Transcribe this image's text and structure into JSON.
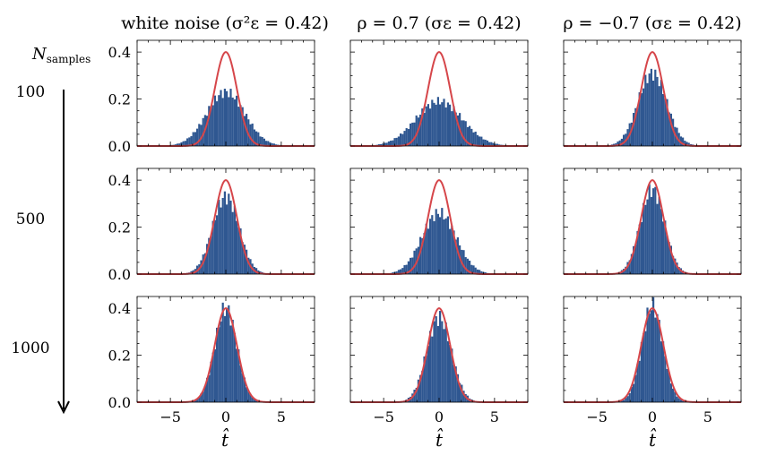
{
  "colors": {
    "histogram": "#2f5791",
    "density_curve": "#d6464a",
    "axis": "#000000"
  },
  "labels": {
    "y_header_main": "N",
    "y_header_sub": "samples",
    "x_label": "t̂"
  },
  "column_titles": [
    "white noise (σ²ε = 0.42)",
    "ρ = 0.7 (σε = 0.42)",
    "ρ = −0.7 (σε = 0.42)"
  ],
  "row_labels": [
    "100",
    "500",
    "1000"
  ],
  "chart_data": [
    {
      "type": "histogram",
      "title": "white noise (σ²ε = 0.42)",
      "xlabel": "t̂",
      "xlim": [
        -8,
        8
      ],
      "ylim": [
        0,
        0.45
      ],
      "x_ticks": [
        -5,
        0,
        5
      ],
      "y_ticks": [
        0.0,
        0.2,
        0.4
      ],
      "panels": [
        {
          "n_samples": 100,
          "histogram_sd": 1.72,
          "histogram_peak": 0.23,
          "reference_curve": "standard normal density",
          "curve_peak": 0.4
        },
        {
          "n_samples": 500,
          "histogram_sd": 1.2,
          "histogram_peak": 0.33,
          "reference_curve": "standard normal density",
          "curve_peak": 0.4
        },
        {
          "n_samples": 1000,
          "histogram_sd": 1.0,
          "histogram_peak": 0.4,
          "reference_curve": "standard normal density",
          "curve_peak": 0.4
        }
      ]
    },
    {
      "type": "histogram",
      "title": "ρ = 0.7 (σε = 0.42)",
      "xlabel": "t̂",
      "xlim": [
        -8,
        8
      ],
      "ylim": [
        0,
        0.45
      ],
      "x_ticks": [
        -5,
        0,
        5
      ],
      "y_ticks": [
        0.0,
        0.2,
        0.4
      ],
      "panels": [
        {
          "n_samples": 100,
          "histogram_sd": 2.1,
          "histogram_peak": 0.19,
          "reference_curve": "standard normal density",
          "curve_peak": 0.4
        },
        {
          "n_samples": 500,
          "histogram_sd": 1.55,
          "histogram_peak": 0.26,
          "reference_curve": "standard normal density",
          "curve_peak": 0.4
        },
        {
          "n_samples": 1000,
          "histogram_sd": 1.12,
          "histogram_peak": 0.36,
          "reference_curve": "standard normal density",
          "curve_peak": 0.4
        }
      ]
    },
    {
      "type": "histogram",
      "title": "ρ = −0.7 (σε = 0.42)",
      "xlabel": "t̂",
      "xlim": [
        -8,
        8
      ],
      "ylim": [
        0,
        0.45
      ],
      "x_ticks": [
        -5,
        0,
        5
      ],
      "y_ticks": [
        0.0,
        0.2,
        0.4
      ],
      "panels": [
        {
          "n_samples": 100,
          "histogram_sd": 1.3,
          "histogram_peak": 0.31,
          "reference_curve": "standard normal density",
          "curve_peak": 0.4
        },
        {
          "n_samples": 500,
          "histogram_sd": 1.1,
          "histogram_peak": 0.36,
          "reference_curve": "standard normal density",
          "curve_peak": 0.4
        },
        {
          "n_samples": 1000,
          "histogram_sd": 0.95,
          "histogram_peak": 0.41,
          "reference_curve": "standard normal density",
          "curve_peak": 0.4
        }
      ]
    }
  ]
}
